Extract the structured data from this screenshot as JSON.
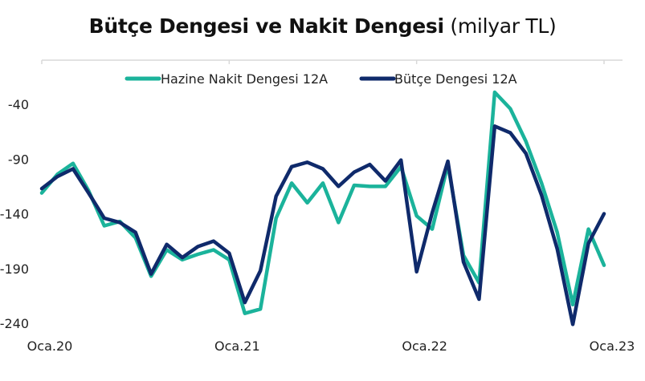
{
  "title": {
    "bold": "Bütçe Dengesi ve Nakit Dengesi",
    "light": "(milyar TL)"
  },
  "colors": {
    "hazine": "#1bb39b",
    "butce": "#0f2a6b",
    "axis": "#d9d9d9",
    "text": "#222222"
  },
  "chart_data": {
    "type": "line",
    "title": "Bütçe Dengesi ve Nakit Dengesi (milyar TL)",
    "xlabel": "",
    "ylabel": "",
    "ylim": [
      -240,
      0
    ],
    "yticks": [
      -40,
      -90,
      -140,
      -190,
      -240
    ],
    "xtick_labels": [
      "Oca.20",
      "Oca.21",
      "Oca.22",
      "Oca.23"
    ],
    "xtick_indices": [
      0,
      12,
      24,
      36
    ],
    "grid": false,
    "legend_position": "top",
    "x": [
      "Oca.20",
      "Şub.20",
      "Mar.20",
      "Nis.20",
      "May.20",
      "Haz.20",
      "Tem.20",
      "Ağu.20",
      "Eyl.20",
      "Eki.20",
      "Kas.20",
      "Ara.20",
      "Oca.21",
      "Şub.21",
      "Mar.21",
      "Nis.21",
      "May.21",
      "Haz.21",
      "Tem.21",
      "Ağu.21",
      "Eyl.21",
      "Eki.21",
      "Kas.21",
      "Ara.21",
      "Oca.22",
      "Şub.22",
      "Mar.22",
      "Nis.22",
      "May.22",
      "Haz.22",
      "Tem.22",
      "Ağu.22",
      "Eyl.22",
      "Eki.22",
      "Kas.22",
      "Ara.22",
      "Oca.23"
    ],
    "series": [
      {
        "name": "Hazine Nakit Dengesi  12A",
        "color": "#1bb39b",
        "values": [
          -121,
          -104,
          -94,
          -119,
          -151,
          -147,
          -162,
          -197,
          -173,
          -182,
          -177,
          -173,
          -182,
          -231,
          -227,
          -144,
          -112,
          -130,
          -112,
          -148,
          -114,
          -115,
          -115,
          -97,
          -142,
          -154,
          -95,
          -178,
          -203,
          -29,
          -44,
          -74,
          -112,
          -157,
          -223,
          -154,
          -187
        ]
      },
      {
        "name": "Bütçe Dengesi 12A",
        "color": "#0f2a6b",
        "values": [
          -117,
          -106,
          -99,
          -121,
          -144,
          -148,
          -157,
          -195,
          -168,
          -180,
          -170,
          -165,
          -176,
          -221,
          -192,
          -124,
          -97,
          -93,
          -99,
          -115,
          -102,
          -95,
          -110,
          -91,
          -193,
          -139,
          -92,
          -184,
          -218,
          -60,
          -66,
          -85,
          -123,
          -172,
          -241,
          -167,
          -140
        ]
      }
    ]
  },
  "legend": {
    "items": [
      {
        "label": "Hazine Nakit Dengesi  12A",
        "color": "#1bb39b"
      },
      {
        "label": "Bütçe Dengesi 12A",
        "color": "#0f2a6b"
      }
    ]
  }
}
